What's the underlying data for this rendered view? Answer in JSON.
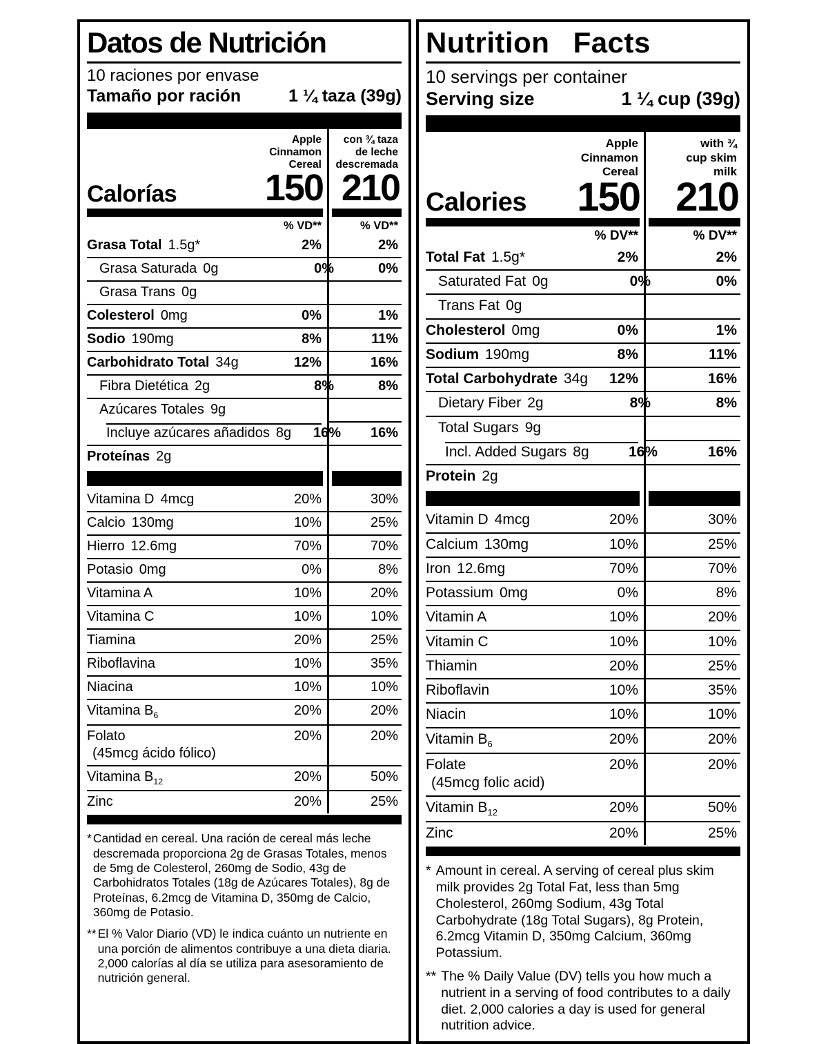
{
  "panels": {
    "left": {
      "title": "Datos de Nutrición",
      "servings_line": "10 raciones por envase",
      "serving_size_label": "Tamaño por ración",
      "serving_size_value": "1 ¼ taza (39g)",
      "col1_header": "Apple\nCinnamon\nCereal",
      "col2_header": "con ¾ taza\nde leche\ndescremada",
      "calories_label": "Calorías",
      "calories_value": "150",
      "calories_milk_value": "210",
      "pct_dv_header": "% VD**",
      "rows": [
        {
          "label": "Grasa Total",
          "amount": "1.5g*",
          "bold": true,
          "indent": 0,
          "pct1": "2%",
          "pct2": "2%",
          "pctBold": true,
          "sep": "none"
        },
        {
          "label": "Grasa Saturada",
          "amount": "0g",
          "indent": 1,
          "pct1": "0%",
          "pct2": "0%",
          "pctBold": true,
          "sep": "full"
        },
        {
          "label": "Grasa Trans",
          "amount": "0g",
          "indent": 1,
          "pct1": "",
          "pct2": "",
          "sep": "full"
        },
        {
          "label": "Colesterol",
          "amount": "0mg",
          "bold": true,
          "indent": 0,
          "pct1": "0%",
          "pct2": "1%",
          "pctBold": true,
          "sep": "full"
        },
        {
          "label": "Sodio",
          "amount": "190mg",
          "bold": true,
          "indent": 0,
          "pct1": "8%",
          "pct2": "11%",
          "pctBold": true,
          "sep": "full"
        },
        {
          "label": "Carbohidrato Total",
          "amount": "34g",
          "bold": true,
          "indent": 0,
          "pct1": "12%",
          "pct2": "16%",
          "pctBold": true,
          "sep": "full"
        },
        {
          "label": "Fibra Dietética",
          "amount": "2g",
          "indent": 1,
          "pct1": "8%",
          "pct2": "8%",
          "pctBold": true,
          "sep": "full"
        },
        {
          "label": "Azúcares Totales",
          "amount": "9g",
          "indent": 1,
          "pct1": "",
          "pct2": "",
          "sep": "full"
        },
        {
          "label": "Incluye azúcares añadidos",
          "amount": "8g",
          "indent": 2,
          "pct1": "16%",
          "pct2": "16%",
          "pctBold": true,
          "sep": "indent"
        },
        {
          "label": "Proteínas",
          "amount": "2g",
          "bold": true,
          "indent": 0,
          "pct1": "",
          "pct2": "",
          "sep": "full"
        },
        {
          "bar": true
        },
        {
          "label": "Vitamina D",
          "amount": "4mcg",
          "pct1": "20%",
          "pct2": "30%",
          "sep": "none"
        },
        {
          "label": "Calcio",
          "amount": "130mg",
          "pct1": "10%",
          "pct2": "25%",
          "sep": "full"
        },
        {
          "label": "Hierro",
          "amount": "12.6mg",
          "pct1": "70%",
          "pct2": "70%",
          "sep": "full"
        },
        {
          "label": "Potasio",
          "amount": "0mg",
          "pct1": "0%",
          "pct2": "8%",
          "sep": "full"
        },
        {
          "label": "Vitamina A",
          "pct1": "10%",
          "pct2": "20%",
          "sep": "full"
        },
        {
          "label": "Vitamina C",
          "pct1": "10%",
          "pct2": "10%",
          "sep": "full"
        },
        {
          "label": "Tiamina",
          "pct1": "20%",
          "pct2": "25%",
          "sep": "full"
        },
        {
          "label": "Riboflavina",
          "pct1": "10%",
          "pct2": "35%",
          "sep": "full"
        },
        {
          "label": "Niacina",
          "pct1": "10%",
          "pct2": "10%",
          "sep": "full"
        },
        {
          "label": "Vitamina B",
          "sub": "6",
          "pct1": "20%",
          "pct2": "20%",
          "sep": "full"
        },
        {
          "label": "Folato",
          "note": "(45mcg ácido fólico)",
          "pct1": "20%",
          "pct2": "20%",
          "sep": "full"
        },
        {
          "label": "Vitamina B",
          "sub": "12",
          "pct1": "20%",
          "pct2": "50%",
          "sep": "full"
        },
        {
          "label": "Zinc",
          "pct1": "20%",
          "pct2": "25%",
          "sep": "full"
        }
      ],
      "footnotes": [
        {
          "marker": "*",
          "text": "Cantidad en cereal. Una ración de cereal más leche descremada proporciona 2g de Grasas Totales, menos de 5mg de Colesterol, 260mg de Sodio, 43g de Carbohidratos Totales (18g de Azúcares Totales), 8g de Proteínas, 6.2mcg de Vitamina D, 350mg de Calcio, 360mg de Potasio."
        },
        {
          "marker": "**",
          "text": "El % Valor Diario (VD) le indica cuánto un nutriente en una porción de alimentos contribuye a una dieta diaria. 2,000 calorías al día se utiliza para asesoramiento de nutrición general."
        }
      ]
    },
    "right": {
      "title": "Nutrition Facts",
      "servings_line": "10 servings per container",
      "serving_size_label": "Serving size",
      "serving_size_value": "1 ¼ cup (39g)",
      "col1_header": "Apple\nCinnamon\nCereal",
      "col2_header": "with ¾\ncup skim\nmilk",
      "calories_label": "Calories",
      "calories_value": "150",
      "calories_milk_value": "210",
      "pct_dv_header": "% DV**",
      "rows": [
        {
          "label": "Total Fat",
          "amount": "1.5g*",
          "bold": true,
          "indent": 0,
          "pct1": "2%",
          "pct2": "2%",
          "pctBold": true,
          "sep": "none"
        },
        {
          "label": "Saturated Fat",
          "amount": "0g",
          "indent": 1,
          "pct1": "0%",
          "pct2": "0%",
          "pctBold": true,
          "sep": "full"
        },
        {
          "label": "Trans Fat",
          "amount": "0g",
          "indent": 1,
          "pct1": "",
          "pct2": "",
          "sep": "full"
        },
        {
          "label": "Cholesterol",
          "amount": "0mg",
          "bold": true,
          "indent": 0,
          "pct1": "0%",
          "pct2": "1%",
          "pctBold": true,
          "sep": "full"
        },
        {
          "label": "Sodium",
          "amount": "190mg",
          "bold": true,
          "indent": 0,
          "pct1": "8%",
          "pct2": "11%",
          "pctBold": true,
          "sep": "full"
        },
        {
          "label": "Total Carbohydrate",
          "amount": "34g",
          "bold": true,
          "indent": 0,
          "pct1": "12%",
          "pct2": "16%",
          "pctBold": true,
          "sep": "full"
        },
        {
          "label": "Dietary Fiber",
          "amount": "2g",
          "indent": 1,
          "pct1": "8%",
          "pct2": "8%",
          "pctBold": true,
          "sep": "full"
        },
        {
          "label": "Total Sugars",
          "amount": "9g",
          "indent": 1,
          "pct1": "",
          "pct2": "",
          "sep": "full"
        },
        {
          "label": "Incl. Added Sugars",
          "amount": "8g",
          "indent": 2,
          "pct1": "16%",
          "pct2": "16%",
          "pctBold": true,
          "sep": "indent"
        },
        {
          "label": "Protein",
          "amount": "2g",
          "bold": true,
          "indent": 0,
          "pct1": "",
          "pct2": "",
          "sep": "full"
        },
        {
          "bar": true
        },
        {
          "label": "Vitamin D",
          "amount": "4mcg",
          "pct1": "20%",
          "pct2": "30%",
          "sep": "none"
        },
        {
          "label": "Calcium",
          "amount": "130mg",
          "pct1": "10%",
          "pct2": "25%",
          "sep": "full"
        },
        {
          "label": "Iron",
          "amount": "12.6mg",
          "pct1": "70%",
          "pct2": "70%",
          "sep": "full"
        },
        {
          "label": "Potassium",
          "amount": "0mg",
          "pct1": "0%",
          "pct2": "8%",
          "sep": "full"
        },
        {
          "label": "Vitamin A",
          "pct1": "10%",
          "pct2": "20%",
          "sep": "full"
        },
        {
          "label": "Vitamin C",
          "pct1": "10%",
          "pct2": "10%",
          "sep": "full"
        },
        {
          "label": "Thiamin",
          "pct1": "20%",
          "pct2": "25%",
          "sep": "full"
        },
        {
          "label": "Riboflavin",
          "pct1": "10%",
          "pct2": "35%",
          "sep": "full"
        },
        {
          "label": "Niacin",
          "pct1": "10%",
          "pct2": "10%",
          "sep": "full"
        },
        {
          "label": "Vitamin B",
          "sub": "6",
          "pct1": "20%",
          "pct2": "20%",
          "sep": "full"
        },
        {
          "label": "Folate",
          "note": "(45mcg folic acid)",
          "pct1": "20%",
          "pct2": "20%",
          "sep": "full"
        },
        {
          "label": "Vitamin B",
          "sub": "12",
          "pct1": "20%",
          "pct2": "50%",
          "sep": "full"
        },
        {
          "label": "Zinc",
          "pct1": "20%",
          "pct2": "25%",
          "sep": "full"
        }
      ],
      "footnotes": [
        {
          "marker": "*",
          "text": "Amount in cereal. A serving of cereal plus skim milk provides 2g Total Fat, less than 5mg Cholesterol, 260mg Sodium, 43g Total Carbohydrate (18g Total Sugars), 8g Protein, 6.2mcg Vitamin D, 350mg Calcium, 360mg Potassium."
        },
        {
          "marker": "**",
          "text": "The % Daily Value (DV) tells you how much a nutrient in a serving of food contributes to a daily diet. 2,000 calories a day is used for general nutrition advice."
        }
      ]
    }
  },
  "colors": {
    "ink": "#000000",
    "paper": "#ffffff"
  }
}
